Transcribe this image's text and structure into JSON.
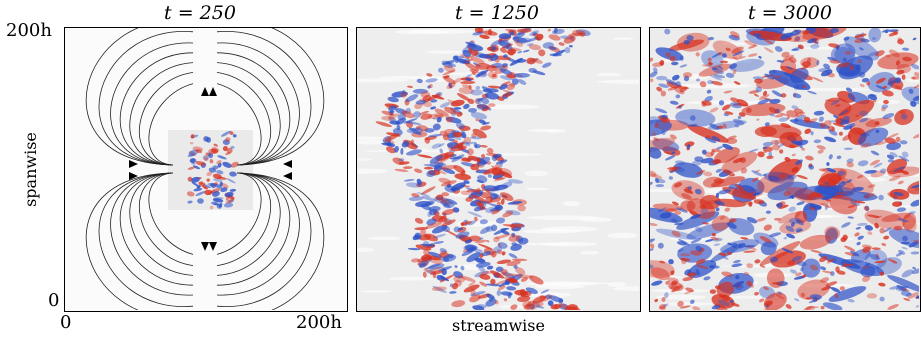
{
  "figure": {
    "panels": [
      {
        "id": "p1",
        "title": "t = 250"
      },
      {
        "id": "p2",
        "title": "t = 1250"
      },
      {
        "id": "p3",
        "title": "t = 3000"
      }
    ],
    "y_axis": {
      "label": "spanwise",
      "top_tick": "200h",
      "bottom_tick": "0"
    },
    "x_axis": {
      "label": "streamwise",
      "left_tick": "0",
      "right_tick": "200h"
    },
    "colors": {
      "warm": "#d7301f",
      "cool": "#2b4fc7",
      "neutral": "#e6e6e6",
      "streamline": "#222222"
    }
  }
}
